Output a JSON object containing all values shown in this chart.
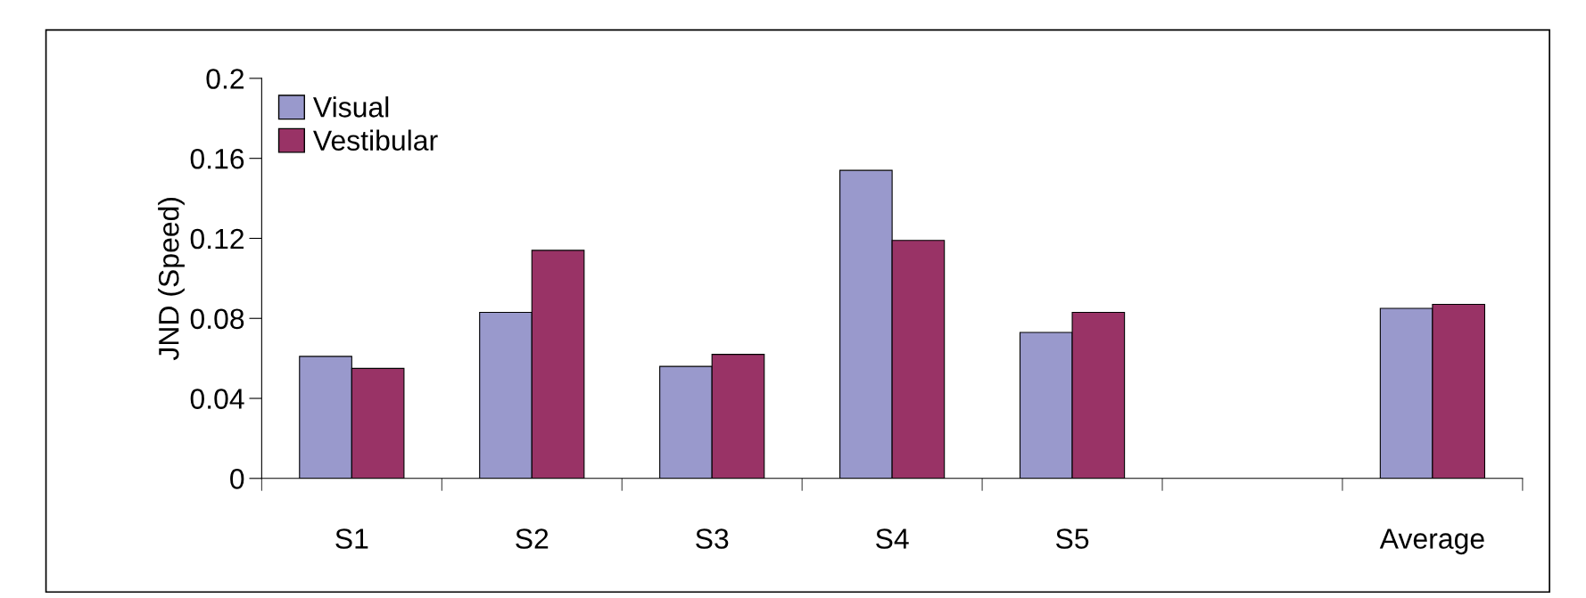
{
  "chart_data": {
    "type": "bar",
    "ylabel": "JND (Speed)",
    "categories": [
      "S1",
      "S2",
      "S3",
      "S4",
      "S5",
      null,
      "Average"
    ],
    "series": [
      {
        "name": "Visual",
        "color": "#9999cc",
        "values": [
          0.061,
          0.083,
          0.056,
          0.154,
          0.073,
          null,
          0.085
        ]
      },
      {
        "name": "Vestibular",
        "color": "#993366",
        "values": [
          0.055,
          0.114,
          0.062,
          0.119,
          0.083,
          null,
          0.087
        ]
      }
    ],
    "ylim": [
      0,
      0.2
    ],
    "yticks": [
      0,
      0.04,
      0.08,
      0.12,
      0.16,
      0.2
    ],
    "grid": false,
    "legend": "top left"
  }
}
